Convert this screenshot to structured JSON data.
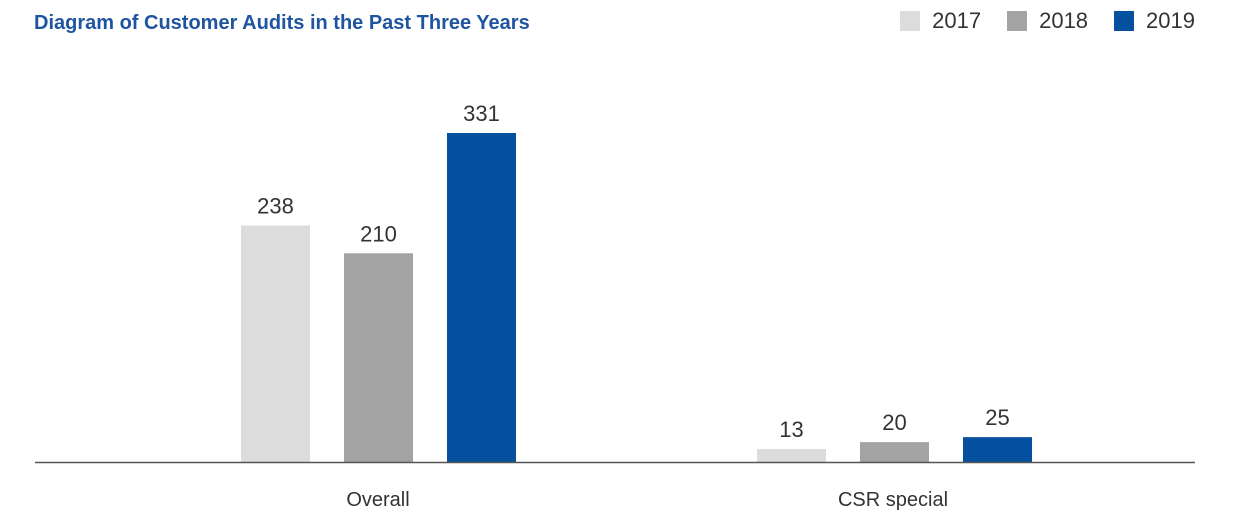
{
  "chart_data": {
    "type": "bar",
    "title": "Diagram of Customer Audits in the Past Three Years",
    "categories": [
      "Overall",
      "CSR special"
    ],
    "series": [
      {
        "name": "2017",
        "color": "#dcdcdc",
        "values": [
          238,
          13
        ]
      },
      {
        "name": "2018",
        "color": "#a3a3a3",
        "values": [
          210,
          20
        ]
      },
      {
        "name": "2019",
        "color": "#0650a0",
        "values": [
          331,
          25
        ]
      }
    ],
    "ylim": [
      0,
      331
    ],
    "grid": false,
    "legend_position": "top-right",
    "xlabel": "",
    "ylabel": ""
  }
}
